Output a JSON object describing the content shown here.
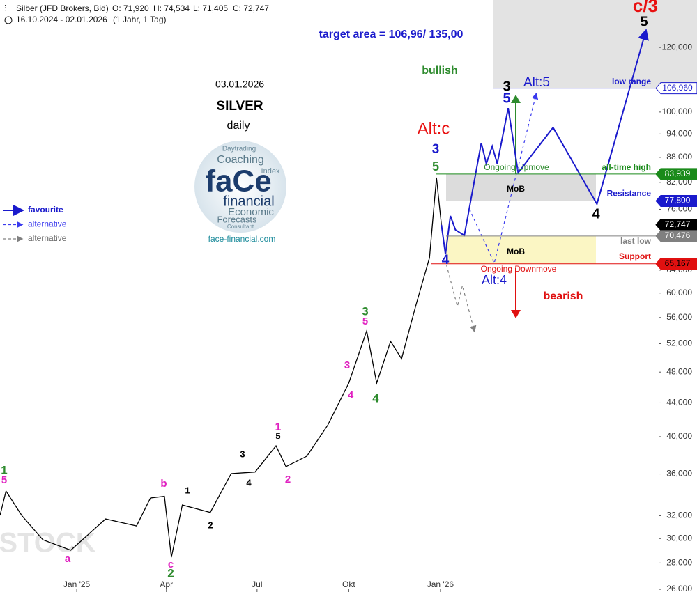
{
  "header": {
    "title": "Silber (JFD Brokers, Bid)",
    "ohlc": [
      "O: 71,920",
      "H: 74,534",
      "L: 71,405",
      "C: 72,747"
    ],
    "range": "16.10.2024 - 02.01.2026",
    "period": "(1 Jahr, 1 Tag)"
  },
  "info": {
    "date": "03.01.2026",
    "symbol": "SILVER",
    "timeframe": "daily",
    "logo_words": [
      "faCe",
      "financial",
      "Coaching",
      "Economic",
      "Forecasts",
      "Daytrading",
      "Index",
      "Consultant"
    ],
    "url": "face-financial.com"
  },
  "chart_data": {
    "type": "line",
    "log_scale": true,
    "xlim": [
      "2024-10-16",
      "2026-08-08"
    ],
    "xticks": [
      {
        "value": "2025-01-01",
        "label": "Jan '25"
      },
      {
        "value": "2025-04-01",
        "label": "Apr"
      },
      {
        "value": "2025-07-01",
        "label": "Jul"
      },
      {
        "value": "2025-10-01",
        "label": "Okt"
      },
      {
        "value": "2026-01-01",
        "label": "Jan '26"
      }
    ],
    "ylim": [
      25800,
      137200
    ],
    "yticks": [
      {
        "value": 26000,
        "label": "26,000"
      },
      {
        "value": 28000,
        "label": "28,000"
      },
      {
        "value": 30000,
        "label": "30,000"
      },
      {
        "value": 32000,
        "label": "32,000"
      },
      {
        "value": 36000,
        "label": "36,000"
      },
      {
        "value": 40000,
        "label": "40,000"
      },
      {
        "value": 44000,
        "label": "44,000"
      },
      {
        "value": 48000,
        "label": "48,000"
      },
      {
        "value": 52000,
        "label": "52,000"
      },
      {
        "value": 56000,
        "label": "56,000"
      },
      {
        "value": 60000,
        "label": "60,000"
      },
      {
        "value": 64000,
        "label": "64,000"
      },
      {
        "value": 76000,
        "label": "76,000"
      },
      {
        "value": 82000,
        "label": "82,000"
      },
      {
        "value": 88000,
        "label": "88,000"
      },
      {
        "value": 94000,
        "label": "94,000"
      },
      {
        "value": 100000,
        "label": "100,000"
      },
      {
        "value": 120000,
        "label": "120,000"
      }
    ],
    "price": {
      "color": "#000000",
      "x": [
        "2024-10-16",
        "2024-10-22",
        "2024-11-07",
        "2024-11-28",
        "2024-12-26",
        "2025-01-30",
        "2025-03-02",
        "2025-03-16",
        "2025-03-30",
        "2025-04-06",
        "2025-04-17",
        "2025-05-15",
        "2025-06-05",
        "2025-06-29",
        "2025-07-20",
        "2025-07-30",
        "2025-08-20",
        "2025-09-10",
        "2025-10-01",
        "2025-10-19",
        "2025-10-29",
        "2025-11-12",
        "2025-11-23",
        "2025-12-07",
        "2025-12-21",
        "2025-12-28",
        "2026-01-02"
      ],
      "values": [
        32030,
        34300,
        32000,
        29900,
        29030,
        31710,
        31090,
        33640,
        33800,
        28460,
        32980,
        32300,
        36040,
        36200,
        38980,
        36760,
        37860,
        41350,
        46530,
        53930,
        46530,
        52350,
        49840,
        57770,
        66280,
        83110,
        72747
      ]
    },
    "series": [
      {
        "name": "favourite",
        "color": "#1a1acc",
        "dash": false,
        "x": [
          "2026-01-02",
          "2026-01-06",
          "2026-01-11",
          "2026-01-16",
          "2026-01-25",
          "2026-02-11",
          "2026-02-16",
          "2026-02-22",
          "2026-02-27",
          "2026-03-10",
          "2026-03-20",
          "2026-04-24",
          "2026-06-07",
          "2026-07-26"
        ],
        "values": [
          72747,
          66940,
          74590,
          71710,
          70600,
          91660,
          86440,
          90780,
          86440,
          101130,
          84260,
          95720,
          77130,
          125570
        ]
      },
      {
        "name": "alternative",
        "color": "#3a3aee",
        "dash": true,
        "x": [
          "2026-01-30",
          "2026-02-24",
          "2026-04-07"
        ],
        "values": [
          76100,
          65250,
          105200
        ]
      },
      {
        "name": "alternative",
        "color": "#808080",
        "dash": true,
        "x": [
          "2026-01-07",
          "2026-01-18",
          "2026-01-23",
          "2026-02-04"
        ],
        "values": [
          65000,
          57770,
          61270,
          53930
        ]
      }
    ],
    "levels": [
      {
        "name": "low range",
        "value": 106960,
        "label": "106,960",
        "color": "#1a1acc",
        "badge": "#ffffff",
        "badge_text": "#1a1acc"
      },
      {
        "name": "all-time high",
        "value": 83939,
        "label": "83,939",
        "color": "#1a8a1a",
        "badge": "#1a8a1a",
        "badge_text": "#ffffff"
      },
      {
        "name": "Resistance",
        "value": 77800,
        "label": "77,800",
        "color": "#1a1acc",
        "badge": "#1a1acc",
        "badge_text": "#ffffff"
      },
      {
        "value": 72747,
        "label": "72,747",
        "color": "#000000",
        "badge": "#000000",
        "badge_text": "#ffffff"
      },
      {
        "name": "last low",
        "value": 70476,
        "label": "70,476",
        "color": "#808080",
        "badge": "#808080",
        "badge_text": "#ffffff"
      },
      {
        "name": "Support",
        "value": 65167,
        "label": "65,167",
        "color": "#e01010",
        "badge": "#e01010",
        "badge_text": "#000000"
      }
    ],
    "annotations": [
      {
        "text": "target area = 106,96/ 135,00",
        "color": "#1a1acc"
      },
      {
        "text": "bullish",
        "color": "#2e8b2e"
      },
      {
        "text": "bearish",
        "color": "#e01010"
      },
      {
        "text": "Alt:c",
        "color": "#e81010"
      },
      {
        "text": "c/3",
        "color": "#e81010"
      },
      {
        "text": "5",
        "color": "#000000"
      },
      {
        "text": "3",
        "color": "#000000"
      },
      {
        "text": "5",
        "color": "#1a1acc"
      },
      {
        "text": "Alt:5",
        "color": "#1a1acc"
      },
      {
        "text": "4",
        "color": "#000000"
      },
      {
        "text": "Alt:4",
        "color": "#1a1acc"
      },
      {
        "text": "3",
        "color": "#1a1acc"
      },
      {
        "text": "5",
        "color": "#2e8b2e"
      },
      {
        "text": "4",
        "color": "#1a1acc"
      },
      {
        "text": "Ongoing Upmove",
        "color": "#2e8b2e"
      },
      {
        "text": "Ongoing Downmove",
        "color": "#e01010"
      },
      {
        "text": "MoB",
        "color": "#000000"
      },
      {
        "text": "MoB",
        "color": "#000000"
      },
      {
        "text": "1",
        "color": "#2e8b2e"
      },
      {
        "text": "5",
        "color": "#e020c0"
      },
      {
        "text": "a",
        "color": "#e020c0"
      },
      {
        "text": "b",
        "color": "#e020c0"
      },
      {
        "text": "c",
        "color": "#e020c0"
      },
      {
        "text": "2",
        "color": "#2e8b2e"
      },
      {
        "text": "1",
        "color": "#000000"
      },
      {
        "text": "2",
        "color": "#000000"
      },
      {
        "text": "3",
        "color": "#000000"
      },
      {
        "text": "4",
        "color": "#000000"
      },
      {
        "text": "1",
        "color": "#e020c0"
      },
      {
        "text": "5",
        "color": "#000000"
      },
      {
        "text": "2",
        "color": "#e020c0"
      },
      {
        "text": "3",
        "color": "#e020c0"
      },
      {
        "text": "4",
        "color": "#e020c0"
      },
      {
        "text": "3",
        "color": "#2e8b2e"
      },
      {
        "text": "5",
        "color": "#e020c0"
      },
      {
        "text": "4",
        "color": "#2e8b2e"
      },
      {
        "text": "STOCK",
        "color": "#e4e4e4"
      }
    ]
  }
}
